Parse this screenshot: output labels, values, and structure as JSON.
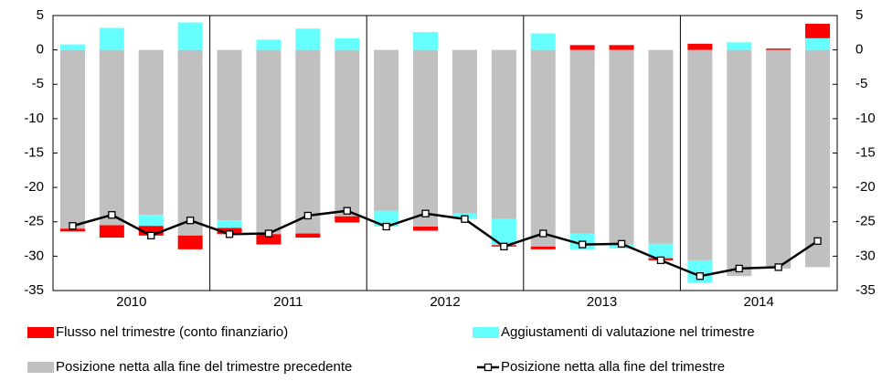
{
  "chart_data": {
    "type": "stacked-bar-line",
    "categories": [
      null,
      null,
      null,
      null,
      null,
      null,
      null,
      null,
      null,
      null,
      null,
      null,
      null,
      null,
      null,
      null,
      null,
      null,
      null,
      null
    ],
    "groups": [
      "2010",
      "2011",
      "2012",
      "2013",
      "2014"
    ],
    "series": [
      {
        "name": "Flusso nel trimestre (conto finanziario)",
        "color": "#ff0000",
        "kind": "bar",
        "values": [
          -0.4,
          -1.8,
          -1.4,
          -2.0,
          -0.9,
          -1.5,
          -0.6,
          -0.9,
          0,
          -0.6,
          0,
          -0.2,
          -0.4,
          0.7,
          0.7,
          -0.3,
          0.9,
          0,
          0.2,
          2.1
        ]
      },
      {
        "name": "Aggiustamenti di valutazione nel trimestre",
        "color": "#66ffff",
        "kind": "bar",
        "values": [
          0.8,
          3.2,
          -1.6,
          4.0,
          -1.1,
          1.5,
          3.1,
          1.7,
          -2.3,
          2.6,
          -0.8,
          -3.8,
          2.4,
          -2.3,
          -0.6,
          -2.1,
          -3.3,
          1.1,
          0,
          1.7
        ]
      },
      {
        "name": "Posizione netta alla fine del trimestre precedente",
        "color": "#c0c0c0",
        "kind": "bar",
        "values": [
          -26.0,
          -25.5,
          -24.0,
          -27.0,
          -24.8,
          -26.8,
          -26.7,
          -24.2,
          -23.4,
          -25.7,
          -23.8,
          -24.6,
          -28.6,
          -26.7,
          -28.3,
          -28.2,
          -30.6,
          -32.9,
          -31.8,
          -31.6
        ]
      },
      {
        "name": "Posizione netta alla fine del trimestre",
        "color": "#000000",
        "kind": "line",
        "values": [
          -25.6,
          -24.0,
          -27.0,
          -24.8,
          -26.8,
          -26.7,
          -24.1,
          -23.4,
          -25.7,
          -23.8,
          -24.6,
          -28.6,
          -26.7,
          -28.3,
          -28.2,
          -30.6,
          -32.9,
          -31.8,
          -31.6,
          -27.8
        ]
      }
    ],
    "ylim": [
      -35,
      5
    ],
    "yticks": [
      -35,
      -30,
      -25,
      -20,
      -15,
      -10,
      -5,
      0,
      5
    ],
    "y2lim": [
      -35,
      5
    ],
    "y2ticks": [
      -35,
      -30,
      -25,
      -20,
      -15,
      -10,
      -5,
      0,
      5
    ]
  }
}
